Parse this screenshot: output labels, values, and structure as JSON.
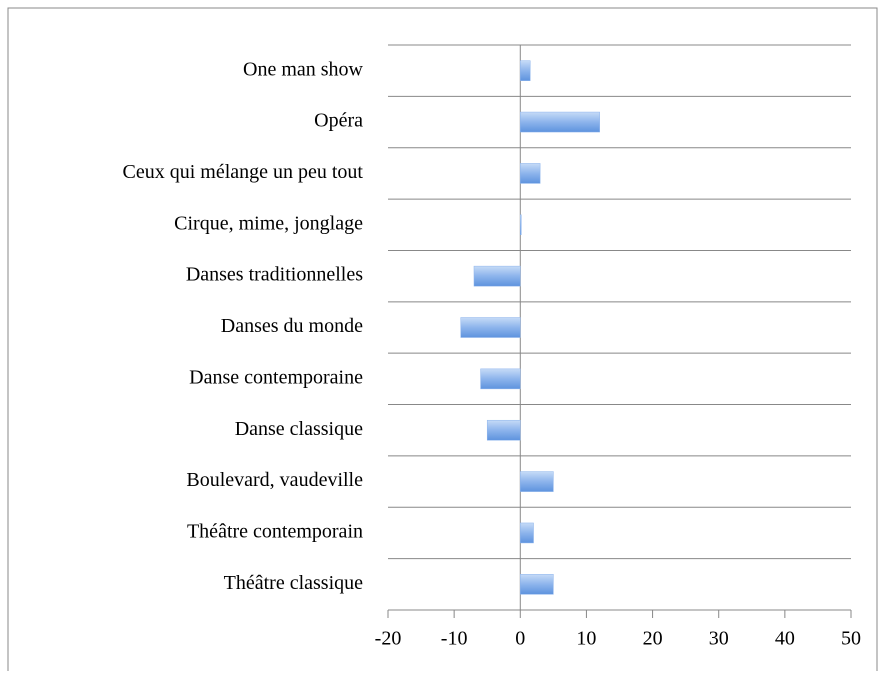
{
  "chart_data": {
    "type": "bar",
    "orientation": "horizontal",
    "categories": [
      "One man show",
      "Opéra",
      "Ceux qui mélange un peu tout",
      "Cirque, mime, jonglage",
      "Danses traditionnelles",
      "Danses du monde",
      "Danse contemporaine",
      "Danse classique",
      "Boulevard, vaudeville",
      "Théâtre contemporain",
      "Théâtre classique"
    ],
    "values": [
      1.5,
      12,
      3,
      0,
      -7,
      -9,
      -6,
      -5,
      5,
      2,
      5
    ],
    "color": "#8db4ec",
    "xlim": [
      -20,
      50
    ],
    "xticks": [
      -20,
      -10,
      0,
      10,
      20,
      30,
      40,
      50
    ]
  }
}
